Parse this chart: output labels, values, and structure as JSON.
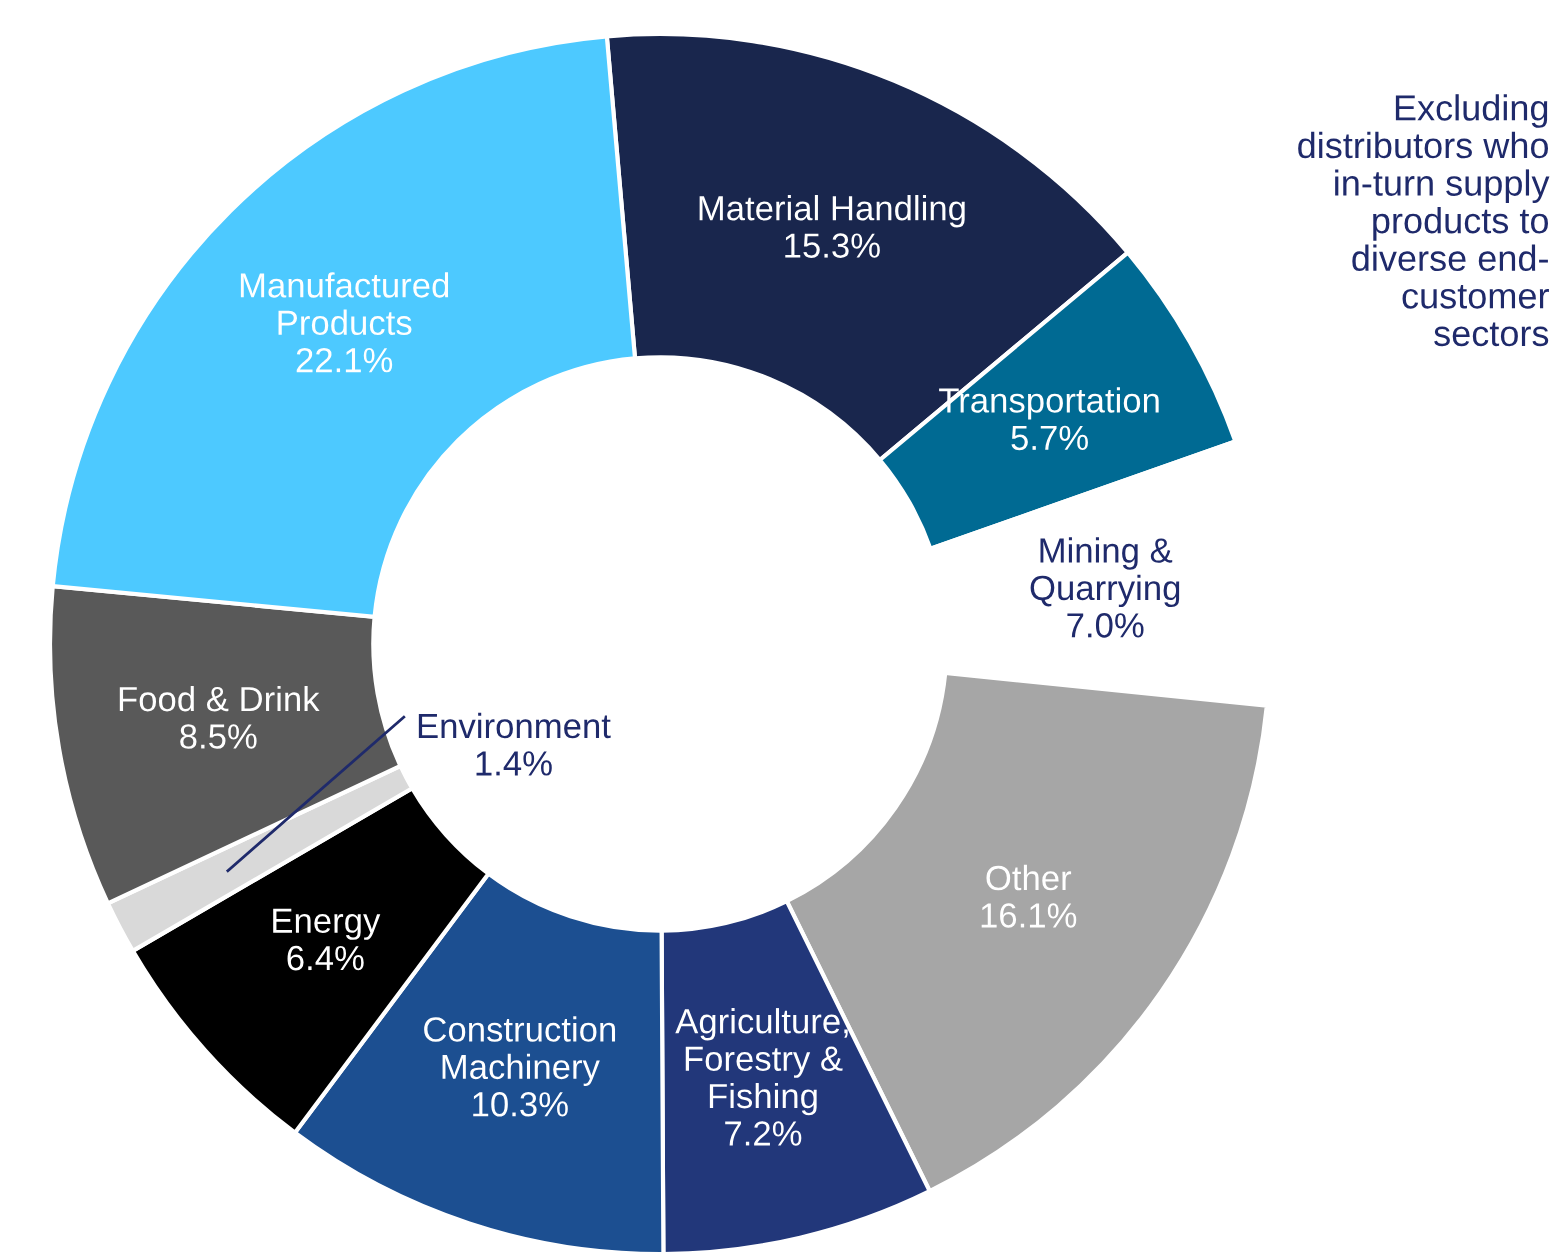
{
  "chart_data": {
    "type": "donut",
    "categories": [
      "Material Handling",
      "Transportation",
      "Mining &\nQuarrying",
      "Other",
      "Agriculture,\nForestry &\nFishing",
      "Construction\nMachinery",
      "Energy",
      "Environment",
      "Food & Drink",
      "Manufactured\nProducts"
    ],
    "values": [
      15.3,
      5.7,
      7.0,
      16.1,
      7.2,
      10.3,
      6.4,
      1.4,
      8.5,
      22.1
    ],
    "value_labels": [
      "15.3%",
      "5.7%",
      "7.0%",
      "16.1%",
      "7.2%",
      "10.3%",
      "6.4%",
      "1.4%",
      "8.5%",
      "22.1%"
    ],
    "colors": [
      "#19264d",
      "#006a93",
      "#ffffff",
      "#a6a6a6",
      "#22377a",
      "#1c4f91",
      "#000000",
      "#d9d9d9",
      "#595959",
      "#4dc9ff"
    ],
    "legend": false,
    "annotations": [
      "Excluding\ndistributors who\nin-turn supply\nproducts to\ndiverse end-\ncustomer\nsectors"
    ]
  }
}
